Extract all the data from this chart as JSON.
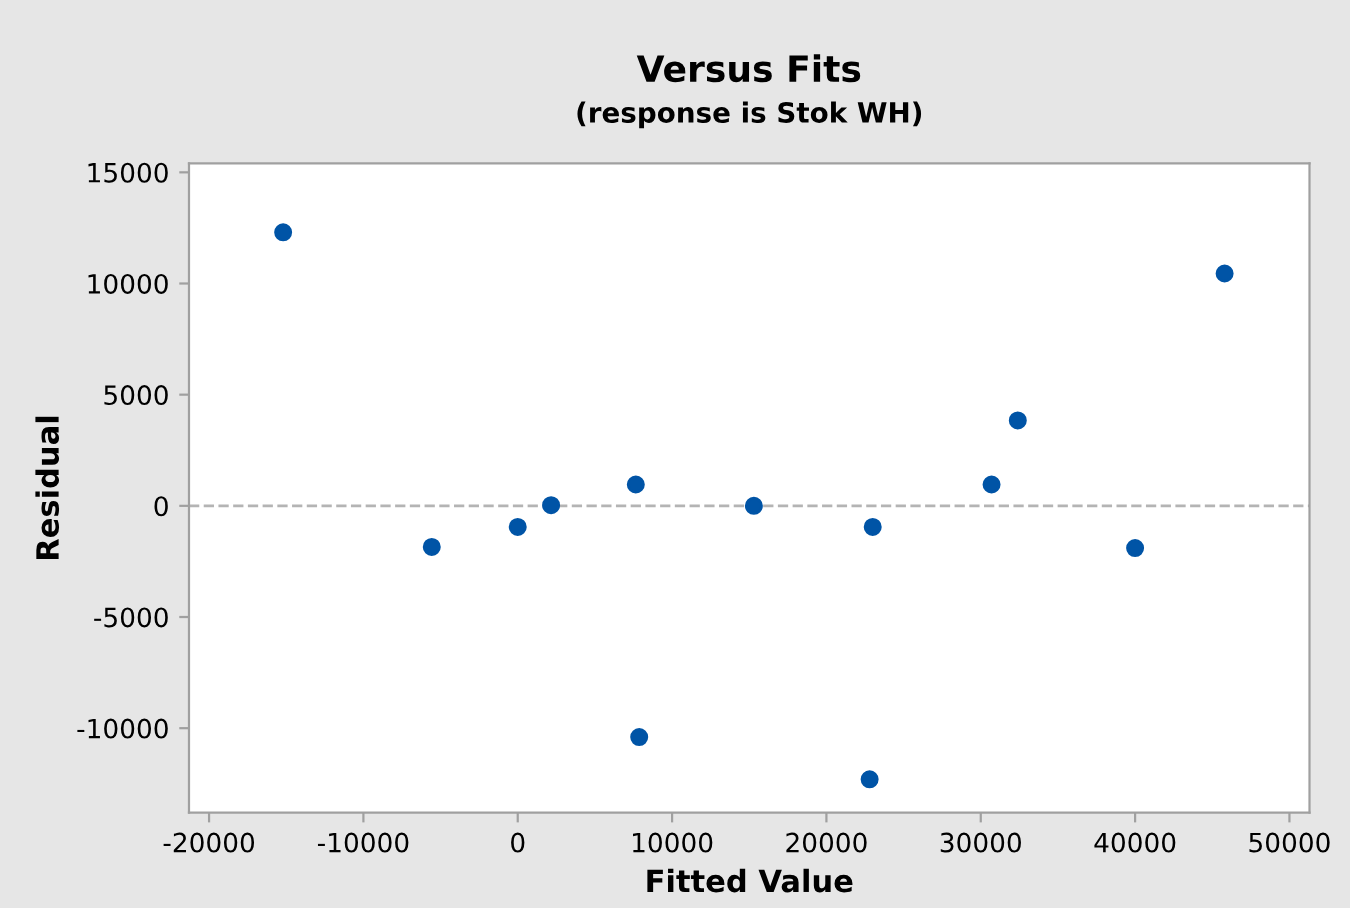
{
  "chart_data": {
    "type": "scatter",
    "title": "Versus Fits",
    "subtitle": "(response is Stok WH)",
    "xlabel": "Fitted Value",
    "ylabel": "Residual",
    "x": [
      -15200,
      -5570,
      0,
      2160,
      7650,
      7870,
      15300,
      23000,
      22800,
      30700,
      32400,
      40000,
      45800
    ],
    "series": [
      {
        "color": "#0054a6",
        "values": [
          12300,
          -1850,
          -950,
          30,
          960,
          -10400,
          0,
          -950,
          -12300,
          960,
          3840,
          -1900,
          10450
        ]
      }
    ],
    "xlim": [
      -21300,
      51300
    ],
    "ylim": [
      -13800,
      15400
    ],
    "xticks": [
      -20000,
      -10000,
      0,
      10000,
      20000,
      30000,
      40000,
      50000
    ],
    "yticks": [
      -10000,
      -5000,
      0,
      5000,
      10000,
      15000
    ],
    "ref_lines": [
      {
        "axis": "y",
        "value": 0,
        "color": "#b4b4b4",
        "line_style": "dashed"
      }
    ],
    "marker": "circle",
    "grid": false,
    "legend": false
  }
}
